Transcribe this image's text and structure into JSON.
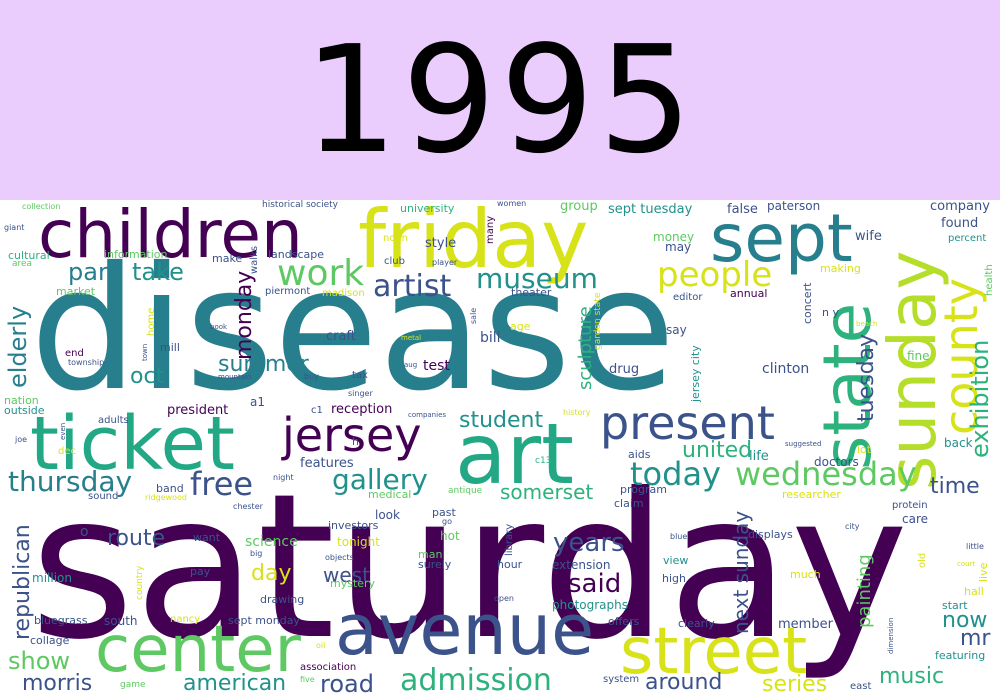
{
  "header": {
    "year": "1995",
    "background": "#ebcdfd"
  },
  "palette": {
    "purple": "#440154",
    "indigo": "#3b528b",
    "teal": "#21918c",
    "green": "#5ec962",
    "yellow": "#d8e219"
  },
  "words": [
    "saturday",
    "disease",
    "friday",
    "children",
    "sept",
    "ticket",
    "art",
    "avenue",
    "center",
    "street",
    "state",
    "sunday",
    "county",
    "present",
    "jersey",
    "work",
    "people",
    "museum",
    "artist",
    "park",
    "take",
    "elderly",
    "exhibition",
    "wednesday",
    "thursday",
    "free",
    "today",
    "gallery",
    "somerset",
    "tuesday",
    "summer",
    "monday",
    "oct",
    "student",
    "united",
    "time",
    "route",
    "years",
    "said",
    "west",
    "day",
    "science",
    "show",
    "morris",
    "american",
    "road",
    "admission",
    "around",
    "series",
    "music",
    "republican",
    "next sunday",
    "painting",
    "now",
    "mr",
    "sculpture",
    "clinton",
    "doctors",
    "features",
    "reception",
    "president",
    "bill",
    "test",
    "drug",
    "craft",
    "life",
    "style",
    "group",
    "sept tuesday",
    "false",
    "paterson",
    "company",
    "found",
    "wife",
    "percent",
    "health",
    "university",
    "noon",
    "club",
    "many",
    "women",
    "historical society",
    "landscape",
    "walks",
    "make",
    "information",
    "cultural",
    "market",
    "piermont",
    "madison",
    "money",
    "may",
    "theater",
    "editor",
    "annual",
    "concert",
    "n y",
    "making",
    "sale",
    "age",
    "say",
    "jersey city",
    "fine",
    "back",
    "lot",
    "aids",
    "program",
    "claim",
    "care",
    "protein",
    "old",
    "little",
    "live",
    "hall",
    "start",
    "member",
    "offers",
    "clearly",
    "photographs",
    "extension",
    "hour",
    "surely",
    "man",
    "hot",
    "tonight",
    "mystery",
    "look",
    "investors",
    "past",
    "medical",
    "antique",
    "researcher",
    "million",
    "bluegrass",
    "collage",
    "south",
    "nancy",
    "sept monday",
    "drawing",
    "pay",
    "want",
    "blue",
    "view",
    "high",
    "displays",
    "much",
    "featuring",
    "east",
    "game",
    "five",
    "oil",
    "association",
    "system",
    "open",
    "library",
    "country",
    "ridgewood",
    "chester",
    "night",
    "sound",
    "band",
    "adults",
    "outside",
    "nation",
    "dec",
    "joe",
    "even",
    "history",
    "companies",
    "c1",
    "a1",
    "tax",
    "buy",
    "mountain",
    "book",
    "home",
    "mill",
    "town",
    "township",
    "end",
    "area",
    "giant",
    "collection",
    "player",
    "metal",
    "aug",
    "beach",
    "suggested",
    "h",
    "c13",
    "go",
    "big",
    "objects",
    "singer",
    "city",
    "dimension",
    "court",
    "o",
    "garden state",
    "leading"
  ]
}
